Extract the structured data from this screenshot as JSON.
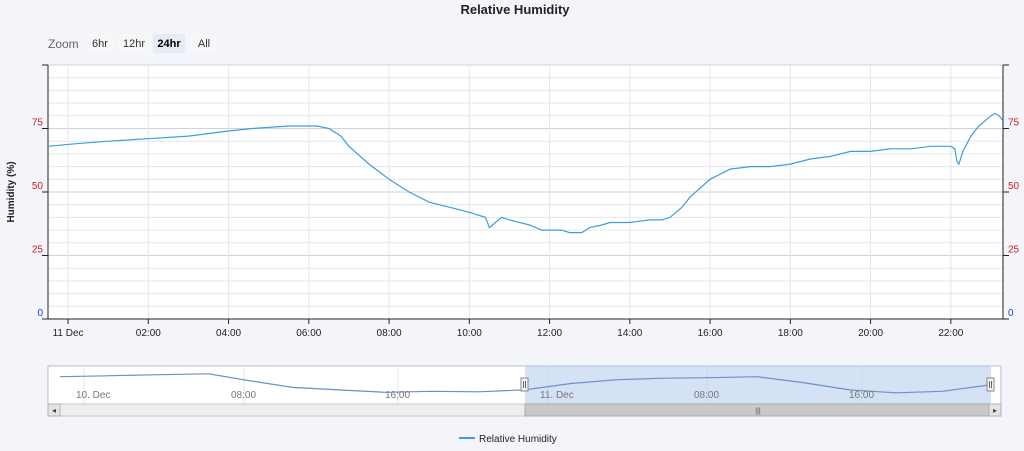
{
  "colors": {
    "series": "#3d9fd6",
    "axis_ticks_low": "#1f3fd6",
    "axis_ticks_high": "#cc1f1f",
    "navigator_series": "#6f8fc4",
    "navigator_selection": "#b9cdee"
  },
  "zoom": {
    "label": "Zoom",
    "buttons": [
      {
        "label": "6hr",
        "active": false
      },
      {
        "label": "12hr",
        "active": false
      },
      {
        "label": "24hr",
        "active": true
      },
      {
        "label": "All",
        "active": false
      }
    ]
  },
  "navigator": {
    "labels": [
      "10. Dec",
      "08:00",
      "16:00",
      "11. Dec",
      "08:00",
      "16:00"
    ],
    "scrollbar_grip": "|||",
    "left_arrow": "◂",
    "right_arrow": "▸"
  },
  "chart_data": {
    "type": "line",
    "title": "Relative Humidity",
    "ylabel": "Humidity (%)",
    "ylim": [
      0,
      100
    ],
    "yticks": [
      0,
      25,
      50,
      75
    ],
    "xlim_hours": [
      -0.5,
      23.3
    ],
    "xtick_labels": [
      "11 Dec",
      "02:00",
      "04:00",
      "06:00",
      "08:00",
      "10:00",
      "12:00",
      "14:00",
      "16:00",
      "18:00",
      "20:00",
      "22:00"
    ],
    "grid": true,
    "legend_position": "bottom-center",
    "series": [
      {
        "name": "Relative Humidity",
        "x": [
          -0.5,
          0.2,
          1.0,
          2.0,
          3.0,
          4.0,
          4.6,
          5.5,
          6.2,
          6.5,
          6.8,
          7.0,
          7.5,
          8.0,
          8.5,
          9.0,
          9.5,
          10.0,
          10.4,
          10.5,
          10.8,
          11.0,
          11.5,
          11.8,
          12.0,
          12.3,
          12.5,
          12.8,
          13.0,
          13.3,
          13.5,
          14.0,
          14.5,
          14.8,
          15.0,
          15.3,
          15.5,
          16.0,
          16.5,
          17.0,
          17.5,
          18.0,
          18.5,
          19.0,
          19.5,
          20.0,
          20.5,
          21.0,
          21.5,
          22.0,
          22.1,
          22.15,
          22.2,
          22.3,
          22.5,
          22.7,
          23.0,
          23.1,
          23.2,
          23.3
        ],
        "y": [
          68,
          69,
          70,
          71,
          72,
          74,
          75,
          76,
          76,
          75,
          72,
          68,
          61,
          55,
          50,
          46,
          44,
          42,
          40,
          36,
          40,
          39,
          37,
          35,
          35,
          35,
          34,
          34,
          36,
          37,
          38,
          38,
          39,
          39,
          40,
          44,
          48,
          55,
          59,
          60,
          60,
          61,
          63,
          64,
          66,
          66,
          67,
          67,
          68,
          68,
          67,
          62,
          61,
          66,
          72,
          76,
          80,
          81,
          80,
          78
        ]
      }
    ]
  },
  "navigator_data": {
    "x_days": [
      0.0,
      0.05,
      0.1,
      0.16,
      0.2,
      0.25,
      0.3,
      0.35,
      0.4,
      0.45,
      0.5,
      0.55,
      0.6,
      0.65,
      0.7,
      0.75,
      0.8,
      0.85,
      0.9,
      0.95,
      1.0
    ],
    "y": [
      72,
      74,
      76,
      78,
      65,
      50,
      45,
      40,
      42,
      41,
      45,
      58,
      66,
      69,
      70,
      72,
      60,
      45,
      39,
      42,
      55
    ]
  }
}
